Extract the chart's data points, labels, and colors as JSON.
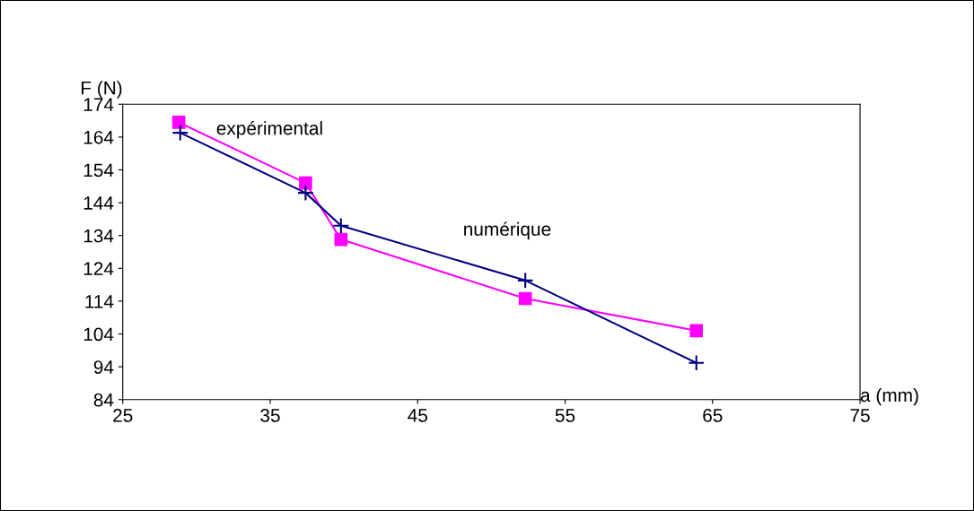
{
  "chart_data": {
    "type": "line",
    "xlabel": "a (mm)",
    "ylabel": "F (N)",
    "xlim": [
      25,
      75
    ],
    "xticks": [
      25,
      35,
      45,
      55,
      65,
      75
    ],
    "ylim": [
      84,
      174
    ],
    "yticks": [
      84,
      94,
      104,
      114,
      124,
      134,
      144,
      154,
      164,
      174
    ],
    "grid": false,
    "legend": false,
    "series": [
      {
        "name": "expérimental",
        "color": "#ff00ff",
        "marker": "square",
        "x": [
          28.8,
          37.4,
          39.8,
          52.3,
          63.9
        ],
        "values": [
          168.5,
          150,
          132.8,
          114.8,
          105
        ]
      },
      {
        "name": "numérique",
        "color": "#000080",
        "marker": "cross",
        "x": [
          28.9,
          37.4,
          39.8,
          52.3,
          63.9
        ],
        "values": [
          165.3,
          147,
          137,
          120.3,
          95.2
        ]
      }
    ]
  }
}
